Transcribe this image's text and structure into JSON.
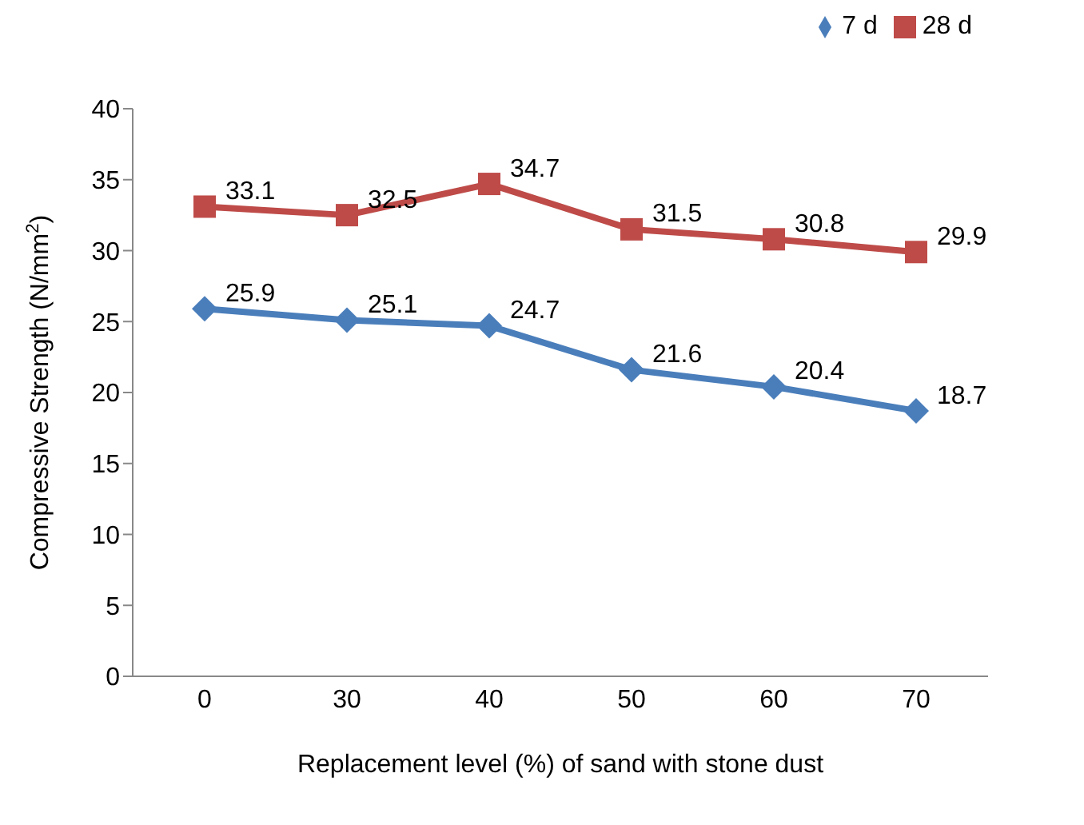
{
  "chart_data": {
    "type": "line",
    "xlabel": "Replacement level (%) of  sand with stone dust",
    "ylabel": "Compressive Strength (N/mm$^{2}$)",
    "categories": [
      "0",
      "30",
      "40",
      "50",
      "60",
      "70"
    ],
    "series": [
      {
        "name": "7 d",
        "color": "#4a7ebb",
        "marker": "diamond",
        "values": [
          25.9,
          25.1,
          24.7,
          21.6,
          20.4,
          18.7
        ]
      },
      {
        "name": "28 d",
        "color": "#be4b48",
        "marker": "square",
        "values": [
          33.1,
          32.5,
          34.7,
          31.5,
          30.8,
          29.9
        ]
      }
    ],
    "ylim": [
      0,
      40
    ],
    "yticks": [
      0,
      5,
      10,
      15,
      20,
      25,
      30,
      35,
      40
    ],
    "grid": false,
    "legend": "top right",
    "data_labels": true
  }
}
